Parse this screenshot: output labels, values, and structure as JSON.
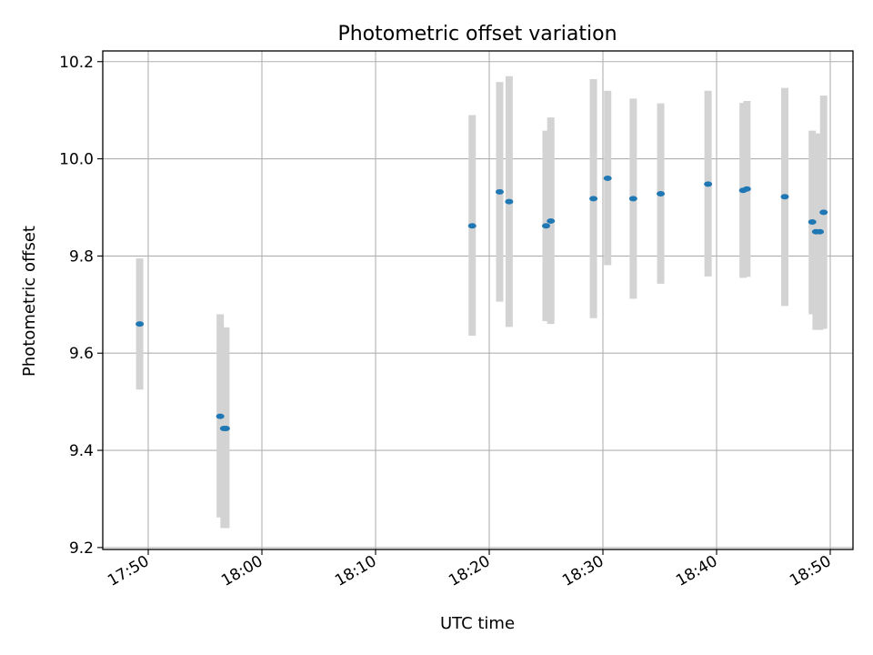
{
  "chart_data": {
    "type": "scatter",
    "title": "Photometric offset variation",
    "xlabel": "UTC time",
    "ylabel": "Photometric offset",
    "xlim": [
      "17:46",
      "18:52"
    ],
    "ylim": [
      9.196,
      10.222
    ],
    "xticks": [
      "17:50",
      "18:00",
      "18:10",
      "18:20",
      "18:30",
      "18:40",
      "18:50"
    ],
    "yticks": [
      "9.2",
      "9.4",
      "9.6",
      "9.8",
      "10.0",
      "10.2"
    ],
    "grid": true,
    "colors": {
      "marker": "#1f77b4",
      "errorbar": "#d3d3d3",
      "grid": "#b0b0b0"
    },
    "points": [
      {
        "x": "17:49:15",
        "y": 9.66,
        "low": 9.525,
        "high": 9.795
      },
      {
        "x": "17:56:20",
        "y": 9.47,
        "low": 9.262,
        "high": 9.68
      },
      {
        "x": "17:56:40",
        "y": 9.445,
        "low": 9.24,
        "high": 9.653
      },
      {
        "x": "17:56:50",
        "y": 9.445,
        "low": 9.24,
        "high": 9.653
      },
      {
        "x": "18:18:30",
        "y": 9.862,
        "low": 9.636,
        "high": 10.09
      },
      {
        "x": "18:20:55",
        "y": 9.932,
        "low": 9.706,
        "high": 10.158
      },
      {
        "x": "18:21:45",
        "y": 9.912,
        "low": 9.654,
        "high": 10.17
      },
      {
        "x": "18:25:00",
        "y": 9.862,
        "low": 9.666,
        "high": 10.058
      },
      {
        "x": "18:25:25",
        "y": 9.872,
        "low": 9.66,
        "high": 10.085
      },
      {
        "x": "18:29:10",
        "y": 9.918,
        "low": 9.672,
        "high": 10.164
      },
      {
        "x": "18:30:25",
        "y": 9.96,
        "low": 9.781,
        "high": 10.14
      },
      {
        "x": "18:32:40",
        "y": 9.918,
        "low": 9.712,
        "high": 10.124
      },
      {
        "x": "18:35:05",
        "y": 9.928,
        "low": 9.743,
        "high": 10.114
      },
      {
        "x": "18:39:15",
        "y": 9.948,
        "low": 9.758,
        "high": 10.14
      },
      {
        "x": "18:42:20",
        "y": 9.935,
        "low": 9.755,
        "high": 10.115
      },
      {
        "x": "18:42:40",
        "y": 9.938,
        "low": 9.757,
        "high": 10.119
      },
      {
        "x": "18:46:00",
        "y": 9.922,
        "low": 9.697,
        "high": 10.146
      },
      {
        "x": "18:48:25",
        "y": 9.87,
        "low": 9.68,
        "high": 10.058
      },
      {
        "x": "18:48:45",
        "y": 9.85,
        "low": 9.648,
        "high": 10.052
      },
      {
        "x": "18:49:05",
        "y": 9.85,
        "low": 9.648,
        "high": 10.052
      },
      {
        "x": "18:49:25",
        "y": 9.89,
        "low": 9.65,
        "high": 10.13
      }
    ]
  }
}
